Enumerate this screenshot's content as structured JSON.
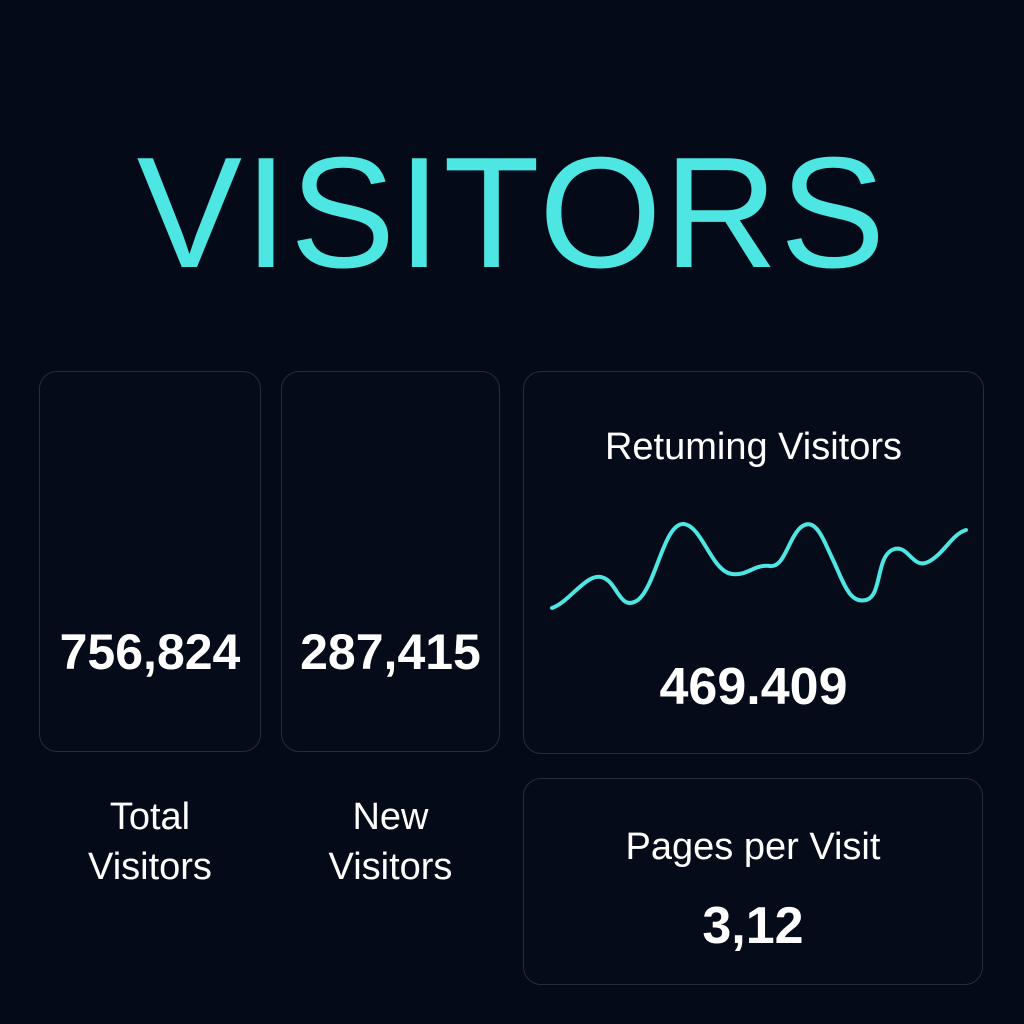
{
  "header": {
    "title": "VISITORS"
  },
  "cards": {
    "total_visitors": {
      "label_line1": "Total",
      "label_line2": "Visitors",
      "value": "756,824"
    },
    "new_visitors": {
      "label_line1": "New",
      "label_line2": "Visitors",
      "value": "287,415"
    },
    "returning_visitors": {
      "label": "Retuming Visitors",
      "value": "469.409",
      "sparkline_color": "#4ee6e3"
    },
    "pages_per_visit": {
      "label": "Pages per Visit",
      "value": "3,12"
    }
  },
  "colors": {
    "background": "#050a18",
    "accent": "#4ee6e3",
    "card_border": "#252c3c",
    "text": "#ffffff"
  }
}
